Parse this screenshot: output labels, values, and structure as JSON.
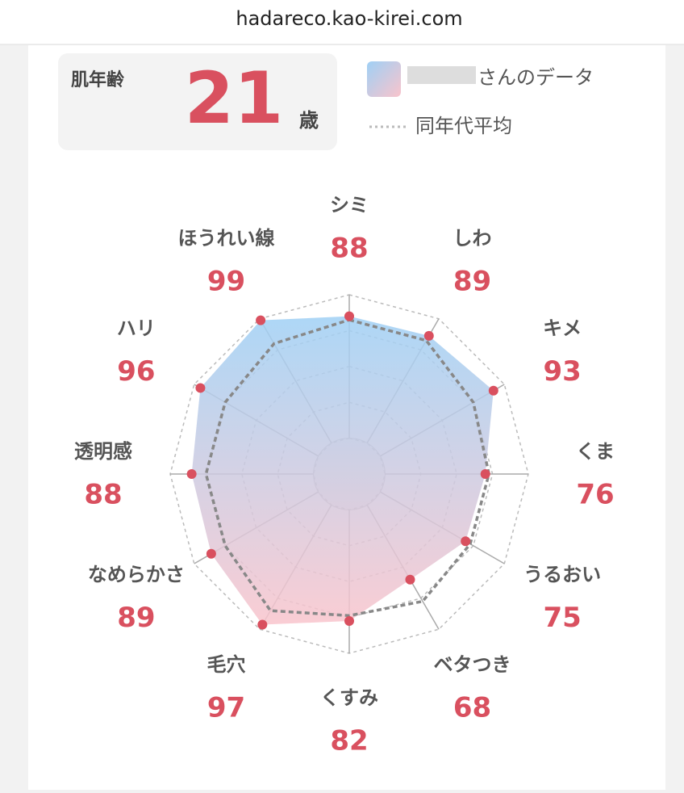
{
  "url": "hadareco.kao-kirei.com",
  "skin_age": {
    "label": "肌年齢",
    "value": 21,
    "unit": "歳"
  },
  "chart_data": {
    "type": "radar",
    "categories": [
      "シミ",
      "しわ",
      "キメ",
      "くま",
      "うるおい",
      "ベタつき",
      "くすみ",
      "毛穴",
      "なめらかさ",
      "透明感",
      "ハリ",
      "ほうれい線"
    ],
    "series": [
      {
        "name": "さんのデータ",
        "color": "#d9505f",
        "values": [
          88,
          89,
          93,
          76,
          75,
          68,
          82,
          97,
          89,
          88,
          96,
          99
        ]
      },
      {
        "name": "同年代平均",
        "color": "#888888",
        "values": [
          86,
          86,
          80,
          78,
          78,
          82,
          79,
          88,
          80,
          80,
          80,
          84
        ]
      }
    ],
    "rlim": [
      0,
      100
    ],
    "rticks": [
      20,
      40,
      60,
      80,
      100
    ]
  }
}
